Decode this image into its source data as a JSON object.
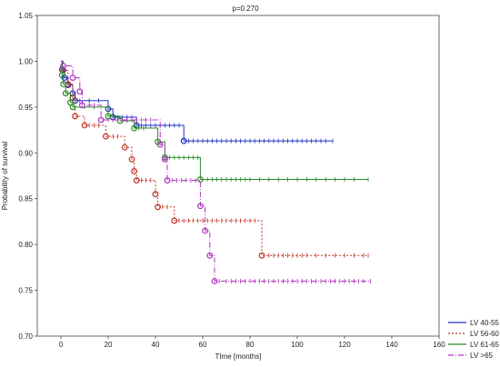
{
  "chart_data": {
    "type": "line",
    "title": "p=0.270",
    "xlabel": "TIme [months]",
    "ylabel": "Probability of survival",
    "xlim": [
      -10,
      160
    ],
    "ylim": [
      0.7,
      1.05
    ],
    "xticks": [
      "0",
      "20",
      "40",
      "60",
      "80",
      "100",
      "120",
      "140",
      "160"
    ],
    "yticks": [
      "0.70",
      "0.75",
      "0.80",
      "0.85",
      "0.90",
      "0.95",
      "1.00",
      "1.05"
    ],
    "grid": false,
    "legend_position": "bottom-right",
    "series": [
      {
        "name": "LV 40-55",
        "color": "#2030c0",
        "dash": "solid",
        "steps": [
          [
            0,
            1.0
          ],
          [
            0.5,
            0.991
          ],
          [
            1.5,
            0.982
          ],
          [
            3,
            0.974
          ],
          [
            5,
            0.965
          ],
          [
            6,
            0.957
          ],
          [
            20,
            0.948
          ],
          [
            22,
            0.939
          ],
          [
            32,
            0.93
          ],
          [
            52,
            0.913
          ],
          [
            115,
            0.913
          ]
        ],
        "events": [
          [
            0.5,
            0.991
          ],
          [
            1.5,
            0.982
          ],
          [
            3,
            0.974
          ],
          [
            5,
            0.965
          ],
          [
            6,
            0.957
          ],
          [
            20,
            0.948
          ],
          [
            22,
            0.939
          ],
          [
            32,
            0.93
          ],
          [
            52,
            0.913
          ]
        ],
        "censored": [
          4,
          8,
          12,
          16,
          24,
          26,
          28,
          30,
          34,
          36,
          38,
          40,
          42,
          44,
          46,
          48,
          50,
          54,
          56,
          58,
          60,
          62,
          64,
          66,
          68,
          70,
          72,
          74,
          76,
          78,
          80,
          82,
          84,
          86,
          88,
          90,
          92,
          94,
          96,
          98,
          100,
          102,
          104,
          106,
          108,
          110,
          112,
          115
        ]
      },
      {
        "name": "LV 56-60",
        "color": "#c03020",
        "dash": "2,2",
        "steps": [
          [
            0,
            1.0
          ],
          [
            1,
            0.99
          ],
          [
            3,
            0.975
          ],
          [
            5,
            0.96
          ],
          [
            6,
            0.94
          ],
          [
            10,
            0.93
          ],
          [
            19,
            0.918
          ],
          [
            27,
            0.906
          ],
          [
            30,
            0.893
          ],
          [
            31,
            0.88
          ],
          [
            32,
            0.87
          ],
          [
            40,
            0.855
          ],
          [
            41,
            0.841
          ],
          [
            48,
            0.826
          ],
          [
            85,
            0.788
          ],
          [
            130,
            0.788
          ]
        ],
        "events": [
          [
            1,
            0.99
          ],
          [
            3,
            0.975
          ],
          [
            5,
            0.96
          ],
          [
            6,
            0.94
          ],
          [
            10,
            0.93
          ],
          [
            19,
            0.918
          ],
          [
            27,
            0.906
          ],
          [
            30,
            0.893
          ],
          [
            31,
            0.88
          ],
          [
            32,
            0.87
          ],
          [
            40,
            0.855
          ],
          [
            41,
            0.841
          ],
          [
            48,
            0.826
          ],
          [
            85,
            0.788
          ]
        ],
        "censored": [
          12,
          14,
          16,
          22,
          24,
          34,
          36,
          38,
          43,
          45,
          50,
          52,
          54,
          56,
          58,
          60,
          62,
          64,
          66,
          68,
          70,
          72,
          74,
          76,
          78,
          80,
          82,
          88,
          90,
          92,
          94,
          96,
          98,
          100,
          102,
          104,
          108,
          112,
          116,
          120,
          124,
          128,
          130
        ]
      },
      {
        "name": "LV 61-65",
        "color": "#2a8a2a",
        "dash": "solid",
        "steps": [
          [
            0,
            1.0
          ],
          [
            0.5,
            0.985
          ],
          [
            1,
            0.975
          ],
          [
            2,
            0.965
          ],
          [
            4,
            0.955
          ],
          [
            5,
            0.95
          ],
          [
            20,
            0.94
          ],
          [
            25,
            0.935
          ],
          [
            31,
            0.927
          ],
          [
            41,
            0.912
          ],
          [
            44,
            0.895
          ],
          [
            59,
            0.871
          ],
          [
            130,
            0.871
          ]
        ],
        "events": [
          [
            0.5,
            0.985
          ],
          [
            1,
            0.975
          ],
          [
            2,
            0.965
          ],
          [
            4,
            0.955
          ],
          [
            5,
            0.95
          ],
          [
            20,
            0.94
          ],
          [
            25,
            0.935
          ],
          [
            31,
            0.927
          ],
          [
            41,
            0.912
          ],
          [
            44,
            0.895
          ],
          [
            59,
            0.871
          ]
        ],
        "censored": [
          10,
          14,
          22,
          26,
          28,
          33,
          35,
          46,
          48,
          50,
          52,
          54,
          56,
          58,
          62,
          64,
          66,
          68,
          70,
          72,
          74,
          76,
          78,
          80,
          84,
          88,
          92,
          96,
          100,
          104,
          108,
          112,
          116,
          120,
          124,
          130
        ]
      },
      {
        "name": "LV >65",
        "color": "#b030c0",
        "dash": "6,2,1,2",
        "steps": [
          [
            0,
            1.0
          ],
          [
            1,
            0.995
          ],
          [
            5,
            0.982
          ],
          [
            8,
            0.967
          ],
          [
            9,
            0.952
          ],
          [
            17,
            0.936
          ],
          [
            42,
            0.909
          ],
          [
            44,
            0.893
          ],
          [
            45,
            0.87
          ],
          [
            59,
            0.842
          ],
          [
            61,
            0.815
          ],
          [
            63,
            0.788
          ],
          [
            65,
            0.76
          ],
          [
            131,
            0.76
          ]
        ],
        "events": [
          [
            1,
            0.995
          ],
          [
            5,
            0.982
          ],
          [
            8,
            0.967
          ],
          [
            9,
            0.952
          ],
          [
            17,
            0.936
          ],
          [
            42,
            0.909
          ],
          [
            44,
            0.893
          ],
          [
            45,
            0.87
          ],
          [
            59,
            0.842
          ],
          [
            61,
            0.815
          ],
          [
            63,
            0.788
          ],
          [
            65,
            0.76
          ]
        ],
        "censored": [
          12,
          14,
          20,
          22,
          24,
          26,
          28,
          30,
          32,
          34,
          36,
          38,
          47,
          49,
          51,
          53,
          55,
          57,
          67,
          70,
          72,
          74,
          76,
          78,
          80,
          82,
          84,
          86,
          88,
          90,
          92,
          94,
          96,
          98,
          100,
          102,
          104,
          106,
          108,
          110,
          112,
          114,
          116,
          118,
          120,
          122,
          124,
          126,
          128,
          131
        ]
      }
    ]
  }
}
